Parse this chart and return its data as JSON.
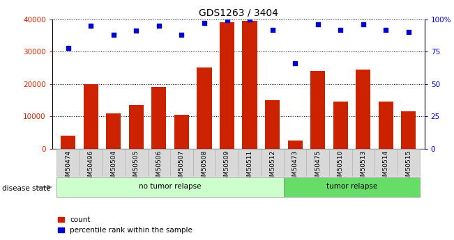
{
  "title": "GDS1263 / 3404",
  "samples": [
    "GSM50474",
    "GSM50496",
    "GSM50504",
    "GSM50505",
    "GSM50506",
    "GSM50507",
    "GSM50508",
    "GSM50509",
    "GSM50511",
    "GSM50512",
    "GSM50473",
    "GSM50475",
    "GSM50510",
    "GSM50513",
    "GSM50514",
    "GSM50515"
  ],
  "counts": [
    4000,
    20000,
    11000,
    13500,
    19000,
    10500,
    25000,
    39000,
    39500,
    15000,
    2500,
    24000,
    14500,
    24500,
    14500,
    11500
  ],
  "percentiles": [
    78,
    95,
    88,
    91,
    95,
    88,
    97,
    99,
    100,
    92,
    66,
    96,
    92,
    96,
    92,
    90
  ],
  "no_tumor_count": 10,
  "tumor_count": 6,
  "bar_color": "#cc2200",
  "dot_color": "#0000cc",
  "no_tumor_color": "#ccffcc",
  "tumor_color": "#66dd66",
  "xtick_bg_color": "#d8d8d8",
  "ylim_left": [
    0,
    40000
  ],
  "ylim_right": [
    0,
    100
  ],
  "left_ticks": [
    0,
    10000,
    20000,
    30000,
    40000
  ],
  "right_ticks": [
    0,
    25,
    50,
    75,
    100
  ],
  "xlabel_fontsize": 6.5,
  "title_fontsize": 10,
  "tick_label_fontsize": 7.5,
  "disease_state_label": "disease state",
  "no_tumor_label": "no tumor relapse",
  "tumor_label": "tumor relapse",
  "count_legend": "count",
  "percentile_legend": "percentile rank within the sample"
}
